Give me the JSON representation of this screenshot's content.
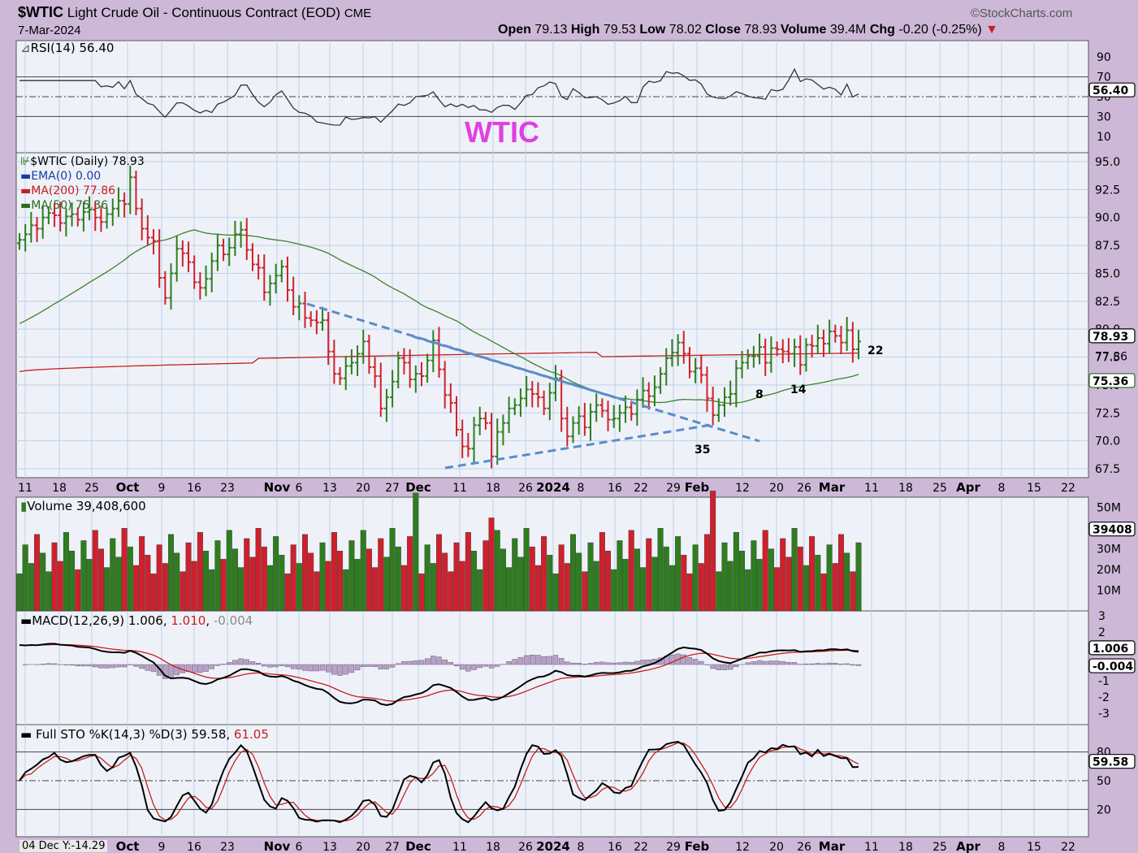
{
  "header": {
    "symbol": "$WTIC",
    "description": "Light Crude Oil - Continuous Contract (EOD)",
    "exchange": "CME",
    "date": "7-Mar-2024",
    "watermark": "©StockCharts.com",
    "quote": {
      "open_label": "Open",
      "open": "79.13",
      "high_label": "High",
      "high": "79.53",
      "low_label": "Low",
      "low": "78.02",
      "close_label": "Close",
      "close": "78.93",
      "volume_label": "Volume",
      "volume": "39.4M",
      "chg_label": "Chg",
      "chg": "-0.20 (-0.25%)"
    }
  },
  "panels": {
    "rsi": {
      "label": "RSI(14) 56.40",
      "last": "56.40",
      "ticks": [
        "90",
        "70",
        "50",
        "30",
        "10"
      ],
      "annotation": "WTIC"
    },
    "price": {
      "legend": [
        "$WTIC (Daily) 78.93",
        "EMA(0) 0.00",
        "MA(200) 77.86",
        "MA(50) 75.36"
      ],
      "ticks": [
        "95.0",
        "92.5",
        "90.0",
        "87.5",
        "85.0",
        "82.5",
        "80.0",
        "77.5",
        "75.0",
        "72.5",
        "70.0",
        "67.5"
      ],
      "last_close": "78.93",
      "ma200_last": "77.86",
      "ma50_last": "75.36",
      "annotations": [
        {
          "text": "22",
          "color": "#5b8cc8"
        },
        {
          "text": "8",
          "color": "#5b8cc8"
        },
        {
          "text": "14",
          "color": "#5b8cc8"
        },
        {
          "text": "35",
          "color": "#e040e0"
        }
      ]
    },
    "volume": {
      "label": "Volume 39,408,600",
      "last": "39408",
      "ticks": [
        "50M",
        "40M",
        "30M",
        "20M",
        "10M"
      ]
    },
    "macd": {
      "label_main": "MACD(12,26,9) 1.006",
      "label_signal": "1.010",
      "label_hist": "-0.004",
      "last_macd": "1.006",
      "last_hist": "-0.004",
      "ticks": [
        "3",
        "2",
        "1",
        "0",
        "-1",
        "-2",
        "-3"
      ]
    },
    "sto": {
      "label_main": "Full STO %K(14,3) %D(3) 59.58",
      "label_d": "61.05",
      "last": "59.58",
      "ticks": [
        "80",
        "50",
        "20"
      ],
      "footer_note": "04 Dec Y:-14.29"
    }
  },
  "x_axis": {
    "labels": [
      "11",
      "18",
      "25",
      "Oct",
      "9",
      "16",
      "23",
      "Nov",
      "6",
      "13",
      "20",
      "27",
      "Dec",
      "11",
      "18",
      "26",
      "2024",
      "8",
      "16",
      "22",
      "29",
      "Feb",
      "12",
      "20",
      "26",
      "Mar",
      "11",
      "18",
      "25",
      "Apr",
      "8",
      "15",
      "22"
    ]
  },
  "colors": {
    "up": "#2e7d1f",
    "down": "#d0202c",
    "ma200": "#c81e1e",
    "ma50": "#3f7f2a",
    "trend": "#5b8cc8",
    "panel_bg": "#eef2f8",
    "frame_bg": "#cdb8d8"
  },
  "chart_data": {
    "type": "line",
    "title": "$WTIC Light Crude Oil - Continuous Contract (EOD)",
    "closes": [
      88.0,
      88.5,
      89.3,
      89.0,
      90.0,
      90.4,
      90.2,
      89.5,
      90.1,
      90.3,
      89.8,
      90.5,
      90.7,
      90.0,
      89.6,
      90.3,
      90.8,
      91.5,
      91.2,
      93.6,
      90.8,
      89.0,
      88.2,
      87.9,
      84.6,
      82.8,
      85.0,
      87.2,
      86.8,
      86.0,
      84.2,
      83.7,
      84.5,
      86.1,
      87.5,
      86.7,
      87.3,
      88.5,
      88.9,
      87.1,
      85.8,
      85.5,
      83.3,
      84.1,
      84.8,
      85.6,
      83.5,
      82.0,
      82.3,
      81.0,
      80.8,
      80.6,
      80.8,
      78.0,
      76.0,
      75.6,
      76.7,
      77.0,
      77.8,
      78.9,
      76.6,
      75.8,
      72.9,
      73.9,
      75.3,
      77.4,
      77.0,
      75.5,
      76.0,
      75.8,
      77.2,
      79.0,
      76.4,
      74.1,
      73.4,
      71.0,
      69.5,
      69.3,
      71.4,
      72.0,
      71.6,
      68.6,
      70.8,
      71.6,
      72.9,
      73.2,
      73.8,
      74.6,
      74.2,
      73.9,
      72.9,
      74.3,
      75.6,
      72.0,
      70.4,
      71.6,
      72.2,
      71.2,
      72.6,
      73.2,
      72.7,
      71.9,
      72.0,
      72.5,
      73.0,
      72.4,
      73.7,
      74.5,
      74.0,
      74.8,
      76.0,
      77.4,
      77.9,
      78.8,
      77.8,
      76.2,
      76.5,
      75.9,
      73.8,
      72.3,
      73.2,
      73.9,
      74.2,
      76.5,
      77.0,
      77.6,
      77.6,
      78.4,
      77.0,
      78.3,
      78.2,
      78.0,
      77.8,
      78.4,
      76.8,
      78.6,
      78.5,
      79.2,
      78.7,
      79.8,
      79.4,
      78.8,
      79.9,
      78.2,
      78.9
    ],
    "ma200": {
      "start": 76.2,
      "end": 77.86
    },
    "ma50": {
      "end": 75.36
    },
    "rsi_last": 56.4,
    "volume_last_millions": 39.4,
    "macd_last": 1.006,
    "signal_last": 1.01,
    "hist_last": -0.004,
    "sto_k_last": 59.58,
    "sto_d_last": 61.05,
    "ylim_price": [
      67.5,
      95.0
    ]
  }
}
